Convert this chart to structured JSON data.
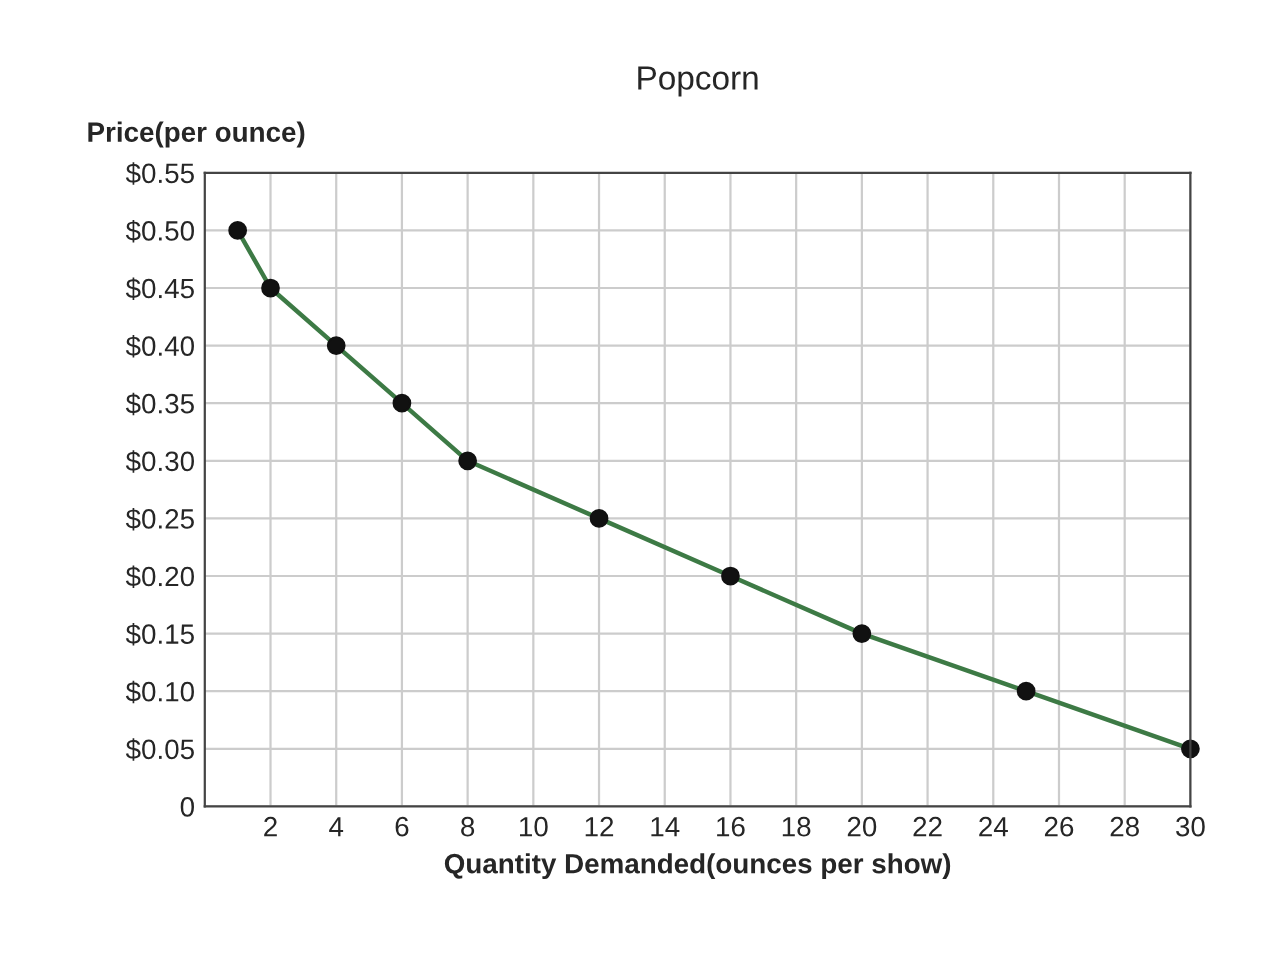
{
  "chart_data": {
    "type": "line",
    "title": "Popcorn",
    "ylabel": "Price(per ounce)",
    "xlabel": "Quantity Demanded(ounces per show)",
    "series": [
      {
        "color": "#3d7a45",
        "x": [
          1,
          2,
          4,
          6,
          8,
          12,
          16,
          20,
          25,
          30
        ],
        "values": [
          0.5,
          0.45,
          0.4,
          0.35,
          0.3,
          0.25,
          0.2,
          0.15,
          0.1,
          0.05
        ]
      }
    ],
    "marker": "circle",
    "line_style": "solid",
    "grid": true,
    "xlim": [
      0,
      30
    ],
    "xticks": [
      2,
      4,
      6,
      8,
      10,
      12,
      14,
      16,
      18,
      20,
      22,
      24,
      26,
      28,
      30
    ],
    "ylim": [
      0,
      0.55
    ],
    "yticks": [
      {
        "value": 0,
        "label": "0"
      },
      {
        "value": 0.05,
        "label": "$0.05"
      },
      {
        "value": 0.1,
        "label": "$0.10"
      },
      {
        "value": 0.15,
        "label": "$0.15"
      },
      {
        "value": 0.2,
        "label": "$0.20"
      },
      {
        "value": 0.25,
        "label": "$0.25"
      },
      {
        "value": 0.3,
        "label": "$0.30"
      },
      {
        "value": 0.35,
        "label": "$0.35"
      },
      {
        "value": 0.4,
        "label": "$0.40"
      },
      {
        "value": 0.45,
        "label": "$0.45"
      },
      {
        "value": 0.5,
        "label": "$0.50"
      },
      {
        "value": 0.55,
        "label": "$0.55"
      }
    ]
  }
}
